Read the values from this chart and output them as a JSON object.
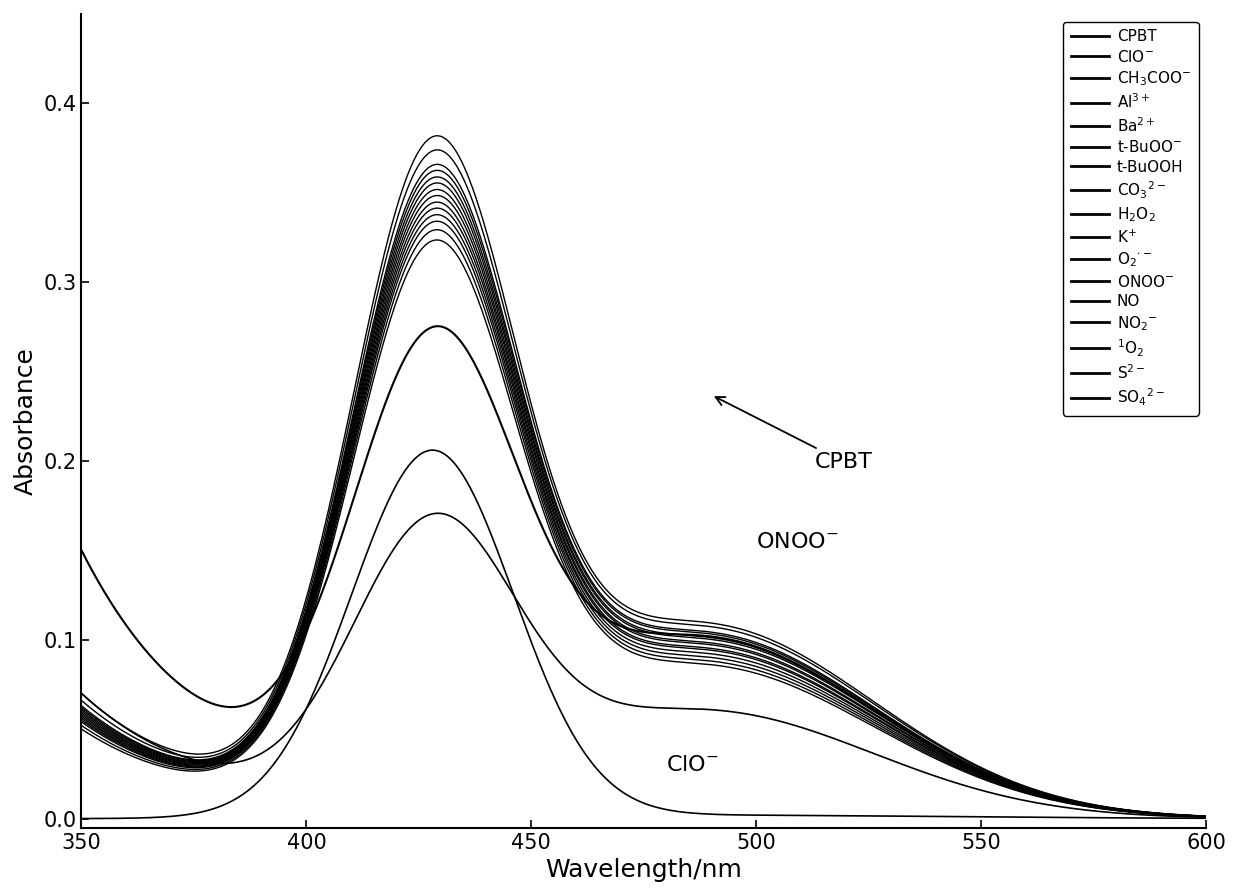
{
  "x_min": 350,
  "x_max": 600,
  "y_min": -0.005,
  "y_max": 0.45,
  "xlabel": "Wavelength/nm",
  "ylabel": "Absorbance",
  "yticks": [
    0.0,
    0.1,
    0.2,
    0.3,
    0.4
  ],
  "xticks": [
    350,
    400,
    450,
    500,
    550,
    600
  ],
  "legend_labels": [
    "CPBT",
    "ClO$^{-}$",
    "CH$_3$COO$^{-}$",
    "Al$^{3+}$",
    "Ba$^{2+}$",
    "t-BuOO$^{-}$",
    "t-BuOOH",
    "CO$_3$$^{2-}$",
    "H$_2$O$_2$",
    "K$^{+}$",
    "O$_2$$^{\\cdot -}$",
    "ONOO$^{-}$",
    "NO",
    "NO$_2$$^{-}$",
    "$^1$O$_2$",
    "S$^{2-}$",
    "SO$_4$$^{2-}$"
  ]
}
